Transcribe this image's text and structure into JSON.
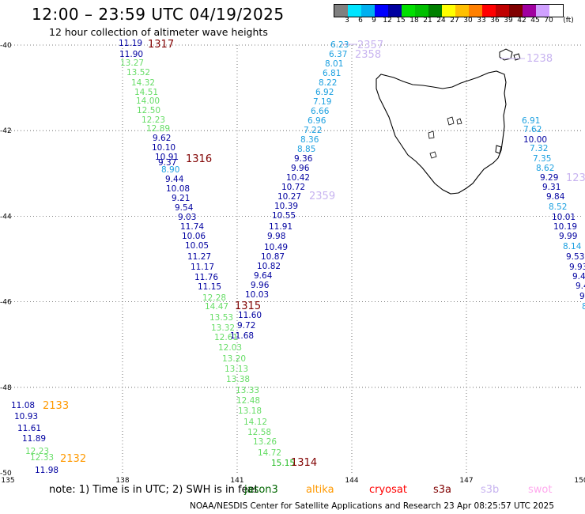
{
  "title": "12:00 – 23:59 UTC 04/19/2025",
  "subtitle": "12 hour collection of altimeter wave heights",
  "colorbar": {
    "unit": "(ft)",
    "labels": [
      "3",
      "6",
      "9",
      "12",
      "15",
      "18",
      "21",
      "24",
      "27",
      "30",
      "33",
      "36",
      "39",
      "42",
      "45",
      "70"
    ],
    "colors": [
      "#808080",
      "#00e5ff",
      "#00b0f0",
      "#0000ff",
      "#0000a0",
      "#00e000",
      "#00c000",
      "#008000",
      "#ffff00",
      "#ffc000",
      "#ff8000",
      "#ff0000",
      "#c00000",
      "#800000",
      "#a000a0",
      "#d0a0ff",
      "#ffffff"
    ]
  },
  "axes": {
    "lon_labels": [
      "135",
      "138",
      "141",
      "144",
      "147",
      "150"
    ],
    "lat_labels": [
      "-40",
      "-42",
      "-44",
      "-46",
      "-48",
      "-50"
    ]
  },
  "pass_labels": [
    {
      "id": "p1317",
      "text": "1317",
      "color": "#800000"
    },
    {
      "id": "p2357",
      "text": "2357",
      "color": "#c8b4f0"
    },
    {
      "id": "p2358",
      "text": "2358",
      "color": "#c8b4f0"
    },
    {
      "id": "p1238",
      "text": "1238",
      "color": "#c8b4f0"
    },
    {
      "id": "p1316",
      "text": "1316",
      "color": "#800000"
    },
    {
      "id": "p2359",
      "text": "2359",
      "color": "#c8b4f0"
    },
    {
      "id": "p123x",
      "text": "123",
      "color": "#c8b4f0"
    },
    {
      "id": "p1315",
      "text": "1315",
      "color": "#800000"
    },
    {
      "id": "p2133",
      "text": "2133",
      "color": "#ff9900"
    },
    {
      "id": "p2132",
      "text": "2132",
      "color": "#ff9900"
    },
    {
      "id": "p1314",
      "text": "1314",
      "color": "#800000"
    }
  ],
  "tracks": {
    "track_1317": [
      {
        "v": "11.19",
        "c": "#0000a0"
      },
      {
        "v": "11.90",
        "c": "#0000a0"
      },
      {
        "v": "13.27",
        "c": "#66dd66"
      },
      {
        "v": "13.52",
        "c": "#66dd66"
      },
      {
        "v": "14.32",
        "c": "#66dd66"
      },
      {
        "v": "14.51",
        "c": "#66dd66"
      },
      {
        "v": "14.00",
        "c": "#66dd66"
      },
      {
        "v": "12.50",
        "c": "#66dd66"
      },
      {
        "v": "12.23",
        "c": "#66dd66"
      },
      {
        "v": "12.89",
        "c": "#66dd66"
      },
      {
        "v": "9.62",
        "c": "#0000a0"
      },
      {
        "v": "10.10",
        "c": "#0000a0"
      },
      {
        "v": "10.91",
        "c": "#0000a0"
      },
      {
        "v": "9.37",
        "c": "#0000a0"
      },
      {
        "v": "8.90",
        "c": "#1ca0e0"
      },
      {
        "v": "9.44",
        "c": "#0000a0"
      },
      {
        "v": "10.08",
        "c": "#0000a0"
      },
      {
        "v": "9.21",
        "c": "#0000a0"
      },
      {
        "v": "9.54",
        "c": "#0000a0"
      },
      {
        "v": "9.03",
        "c": "#0000a0"
      },
      {
        "v": "11.74",
        "c": "#0000a0"
      },
      {
        "v": "10.06",
        "c": "#0000a0"
      },
      {
        "v": "10.05",
        "c": "#0000a0"
      },
      {
        "v": "11.27",
        "c": "#0000a0"
      },
      {
        "v": "11.17",
        "c": "#0000a0"
      },
      {
        "v": "11.76",
        "c": "#0000a0"
      },
      {
        "v": "11.15",
        "c": "#0000a0"
      },
      {
        "v": "12.28",
        "c": "#66dd66"
      },
      {
        "v": "14.47",
        "c": "#66dd66"
      },
      {
        "v": "13.53",
        "c": "#66dd66"
      },
      {
        "v": "13.32",
        "c": "#66dd66"
      },
      {
        "v": "12.61",
        "c": "#66dd66"
      },
      {
        "v": "12.03",
        "c": "#66dd66"
      },
      {
        "v": "13.20",
        "c": "#66dd66"
      },
      {
        "v": "13.13",
        "c": "#66dd66"
      },
      {
        "v": "13.38",
        "c": "#66dd66"
      },
      {
        "v": "13.33",
        "c": "#66dd66"
      },
      {
        "v": "12.48",
        "c": "#66dd66"
      },
      {
        "v": "13.18",
        "c": "#66dd66"
      },
      {
        "v": "14.12",
        "c": "#66dd66"
      },
      {
        "v": "12.58",
        "c": "#66dd66"
      },
      {
        "v": "13.26",
        "c": "#66dd66"
      },
      {
        "v": "14.72",
        "c": "#66dd66"
      },
      {
        "v": "15.15",
        "c": "#22bb22"
      }
    ],
    "track_2358": [
      {
        "v": "6.23",
        "c": "#1ca0e0"
      },
      {
        "v": "6.37",
        "c": "#1ca0e0"
      },
      {
        "v": "8.01",
        "c": "#1ca0e0"
      },
      {
        "v": "6.81",
        "c": "#1ca0e0"
      },
      {
        "v": "8.22",
        "c": "#1ca0e0"
      },
      {
        "v": "6.92",
        "c": "#1ca0e0"
      },
      {
        "v": "7.19",
        "c": "#1ca0e0"
      },
      {
        "v": "6.66",
        "c": "#1ca0e0"
      },
      {
        "v": "6.96",
        "c": "#1ca0e0"
      },
      {
        "v": "7.22",
        "c": "#1ca0e0"
      },
      {
        "v": "8.36",
        "c": "#1ca0e0"
      },
      {
        "v": "8.85",
        "c": "#1ca0e0"
      },
      {
        "v": "9.36",
        "c": "#0000a0"
      },
      {
        "v": "9.96",
        "c": "#0000a0"
      },
      {
        "v": "10.42",
        "c": "#0000a0"
      },
      {
        "v": "10.72",
        "c": "#0000a0"
      },
      {
        "v": "10.27",
        "c": "#0000a0"
      },
      {
        "v": "10.39",
        "c": "#0000a0"
      },
      {
        "v": "10.55",
        "c": "#0000a0"
      },
      {
        "v": "11.91",
        "c": "#0000a0"
      },
      {
        "v": "9.98",
        "c": "#0000a0"
      },
      {
        "v": "10.49",
        "c": "#0000a0"
      },
      {
        "v": "10.87",
        "c": "#0000a0"
      },
      {
        "v": "10.82",
        "c": "#0000a0"
      },
      {
        "v": "9.64",
        "c": "#0000a0"
      },
      {
        "v": "9.96",
        "c": "#0000a0"
      },
      {
        "v": "10.03",
        "c": "#0000a0"
      },
      {
        "v": "11.60",
        "c": "#0000a0"
      },
      {
        "v": "9.72",
        "c": "#0000a0"
      },
      {
        "v": "11.68",
        "c": "#0000a0"
      }
    ],
    "track_1238": [
      {
        "v": "6.91",
        "c": "#1ca0e0"
      },
      {
        "v": "7.62",
        "c": "#1ca0e0"
      },
      {
        "v": "10.00",
        "c": "#0000a0"
      },
      {
        "v": "7.32",
        "c": "#1ca0e0"
      },
      {
        "v": "7.35",
        "c": "#1ca0e0"
      },
      {
        "v": "8.62",
        "c": "#1ca0e0"
      },
      {
        "v": "9.29",
        "c": "#0000a0"
      },
      {
        "v": "9.31",
        "c": "#0000a0"
      },
      {
        "v": "9.84",
        "c": "#0000a0"
      },
      {
        "v": "8.52",
        "c": "#1ca0e0"
      },
      {
        "v": "10.01",
        "c": "#0000a0"
      },
      {
        "v": "10.19",
        "c": "#0000a0"
      },
      {
        "v": "9.99",
        "c": "#0000a0"
      },
      {
        "v": "8.14",
        "c": "#1ca0e0"
      },
      {
        "v": "9.53",
        "c": "#0000a0"
      },
      {
        "v": "9.93",
        "c": "#0000a0"
      },
      {
        "v": "9.4",
        "c": "#0000a0"
      },
      {
        "v": "9.4",
        "c": "#0000a0"
      },
      {
        "v": "9",
        "c": "#0000a0"
      },
      {
        "v": "8",
        "c": "#1ca0e0"
      }
    ],
    "track_2133": [
      {
        "v": "11.08",
        "c": "#0000a0"
      },
      {
        "v": "10.93",
        "c": "#0000a0"
      },
      {
        "v": "11.61",
        "c": "#0000a0"
      },
      {
        "v": "11.89",
        "c": "#0000a0"
      },
      {
        "v": "12.23",
        "c": "#66dd66"
      },
      {
        "v": "12.33",
        "c": "#66dd66"
      },
      {
        "v": "11.98",
        "c": "#0000a0"
      }
    ]
  },
  "note": {
    "prefix": "note: 1) Time is in UTC; 2) SWH is in feet",
    "sats": [
      {
        "name": "jason3",
        "color": "#006600"
      },
      {
        "name": "altika",
        "color": "#ff9900"
      },
      {
        "name": "cryosat",
        "color": "#ff0000"
      },
      {
        "name": "s3a",
        "color": "#800000"
      },
      {
        "name": "s3b",
        "color": "#c8b4f0"
      },
      {
        "name": "swot",
        "color": "#ffaaee"
      }
    ]
  },
  "credit": "NOAA/NESDIS Center for Satellite Applications and Research    23 Apr 08:25:57 UTC 2025"
}
